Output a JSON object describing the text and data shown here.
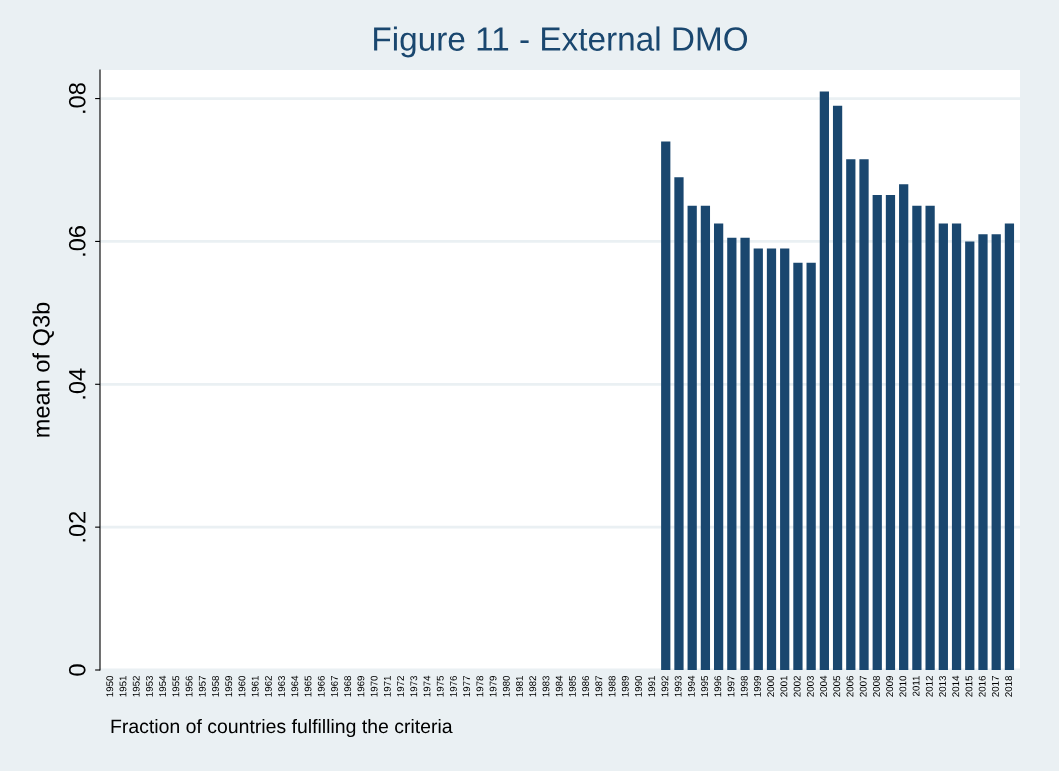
{
  "chart_data": {
    "type": "bar",
    "title": "Figure 11 - External DMO",
    "ylabel": "mean of Q3b",
    "categories": [
      "1950",
      "1951",
      "1952",
      "1953",
      "1954",
      "1955",
      "1956",
      "1957",
      "1958",
      "1959",
      "1960",
      "1961",
      "1962",
      "1963",
      "1964",
      "1965",
      "1966",
      "1967",
      "1968",
      "1969",
      "1970",
      "1971",
      "1972",
      "1973",
      "1974",
      "1975",
      "1976",
      "1977",
      "1978",
      "1979",
      "1980",
      "1981",
      "1982",
      "1983",
      "1984",
      "1985",
      "1986",
      "1987",
      "1988",
      "1989",
      "1990",
      "1991",
      "1992",
      "1993",
      "1994",
      "1995",
      "1996",
      "1997",
      "1998",
      "1999",
      "2000",
      "2001",
      "2002",
      "2003",
      "2004",
      "2005",
      "2006",
      "2007",
      "2008",
      "2009",
      "2010",
      "2011",
      "2012",
      "2013",
      "2014",
      "2015",
      "2016",
      "2017",
      "2018"
    ],
    "values": [
      null,
      null,
      null,
      null,
      null,
      null,
      null,
      null,
      null,
      null,
      null,
      null,
      null,
      null,
      null,
      null,
      null,
      null,
      null,
      null,
      null,
      null,
      null,
      null,
      null,
      null,
      null,
      null,
      null,
      null,
      null,
      null,
      null,
      null,
      null,
      null,
      null,
      null,
      null,
      null,
      null,
      null,
      0.074,
      0.069,
      0.065,
      0.065,
      0.0625,
      0.0605,
      0.0605,
      0.059,
      0.059,
      0.059,
      0.057,
      0.057,
      0.081,
      0.079,
      0.0715,
      0.0715,
      0.0665,
      0.0665,
      0.068,
      0.065,
      0.065,
      0.0625,
      0.0625,
      0.06,
      0.061,
      0.061,
      0.0625
    ],
    "color": "#1a476f",
    "ylim": [
      0,
      0.084
    ],
    "yticks": [
      0,
      {
        "value": 0.02,
        "label": ".02"
      },
      {
        "value": 0.04,
        "label": ".04"
      },
      {
        "value": 0.06,
        "label": ".06"
      },
      {
        "value": 0.08,
        "label": ".08"
      }
    ],
    "grid": "y",
    "annotations": [
      "Fraction of countries fulfilling the criteria"
    ]
  }
}
